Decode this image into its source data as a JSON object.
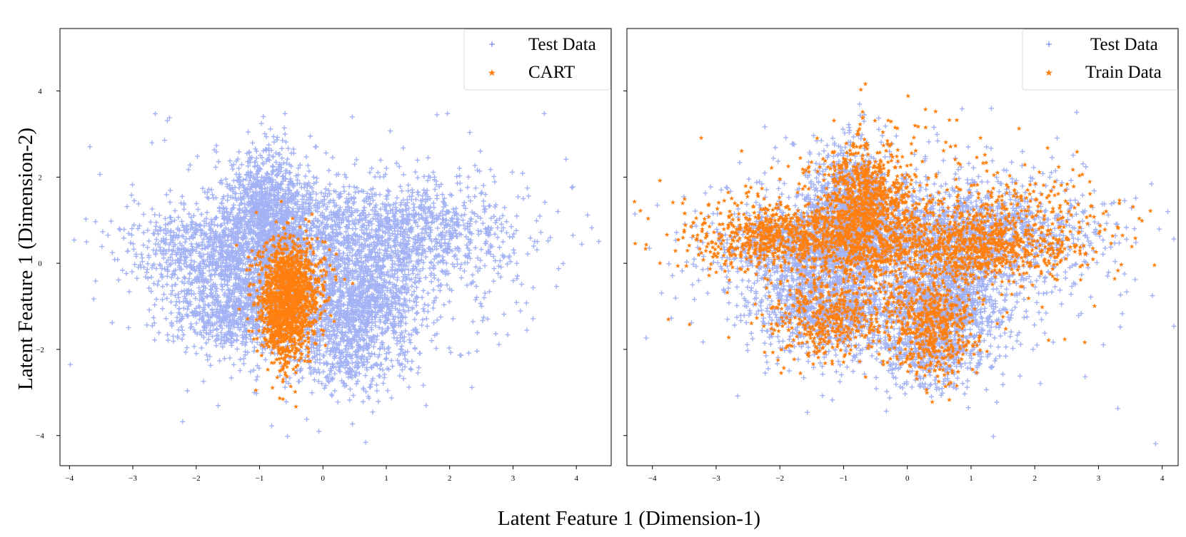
{
  "figure": {
    "ylabel": "Latent Feature 1 (Dimension-2)",
    "xlabel": "Latent Feature 1 (Dimension-1)"
  },
  "colors": {
    "test": "#3355e6",
    "overlay": "#ff7f0e"
  },
  "chart_data": [
    {
      "type": "scatter",
      "xlim": [
        -4.15,
        4.55
      ],
      "ylim": [
        -4.7,
        5.45
      ],
      "xticks": [
        -4,
        -3,
        -2,
        -1,
        0,
        1,
        2,
        3,
        4
      ],
      "yticks": [
        -4,
        -2,
        0,
        2,
        4
      ],
      "xtick_labels": [
        "−4",
        "−3",
        "−2",
        "−1",
        "0",
        "1",
        "2",
        "3",
        "4"
      ],
      "ytick_labels": [
        "−4",
        "−2",
        "0",
        "2",
        "4"
      ],
      "legend_position": "top-right",
      "series": [
        {
          "name": "Test Data",
          "marker": "plus",
          "color": "#3355e6",
          "point_count": 6000,
          "clusters": [
            {
              "cx": -0.9,
              "cy": 1.2,
              "sx": 0.35,
              "sy": 0.75,
              "n": 1000
            },
            {
              "cx": -1.7,
              "cy": 0.4,
              "sx": 0.7,
              "sy": 0.45,
              "n": 700
            },
            {
              "cx": 1.0,
              "cy": 0.7,
              "sx": 1.0,
              "sy": 0.55,
              "n": 1200
            },
            {
              "cx": -1.3,
              "cy": -1.0,
              "sx": 0.55,
              "sy": 0.55,
              "n": 900
            },
            {
              "cx": 0.6,
              "cy": -0.8,
              "sx": 0.45,
              "sy": 0.5,
              "n": 800
            },
            {
              "cx": 0.4,
              "cy": -2.0,
              "sx": 0.5,
              "sy": 0.5,
              "n": 500
            },
            {
              "cx": 0.0,
              "cy": 0.0,
              "sx": 1.5,
              "sy": 1.3,
              "n": 900
            }
          ]
        },
        {
          "name": "CART",
          "marker": "star",
          "color": "#ff7f0e",
          "point_count": 1500,
          "clusters": [
            {
              "cx": -0.55,
              "cy": -0.9,
              "sx": 0.22,
              "sy": 0.7,
              "n": 1300
            },
            {
              "cx": -0.4,
              "cy": -0.3,
              "sx": 0.3,
              "sy": 0.4,
              "n": 200
            }
          ]
        }
      ]
    },
    {
      "type": "scatter",
      "xlim": [
        -4.4,
        4.25
      ],
      "ylim": [
        -4.7,
        5.45
      ],
      "xticks": [
        -4,
        -3,
        -2,
        -1,
        0,
        1,
        2,
        3,
        4
      ],
      "yticks": [
        -4,
        -2,
        0,
        2,
        4
      ],
      "xtick_labels": [
        "−4",
        "−3",
        "−2",
        "−1",
        "0",
        "1",
        "2",
        "3",
        "4"
      ],
      "ytick_labels": [
        "",
        "",
        "",
        "",
        ""
      ],
      "legend_position": "top-right",
      "series": [
        {
          "name": "Test Data",
          "marker": "plus",
          "color": "#3355e6",
          "point_count": 6000,
          "clusters": [
            {
              "cx": -0.9,
              "cy": 1.2,
              "sx": 0.35,
              "sy": 0.75,
              "n": 1000
            },
            {
              "cx": -1.7,
              "cy": 0.4,
              "sx": 0.7,
              "sy": 0.45,
              "n": 700
            },
            {
              "cx": 1.0,
              "cy": 0.7,
              "sx": 1.0,
              "sy": 0.55,
              "n": 1200
            },
            {
              "cx": -1.3,
              "cy": -1.0,
              "sx": 0.55,
              "sy": 0.55,
              "n": 900
            },
            {
              "cx": 0.6,
              "cy": -0.8,
              "sx": 0.45,
              "sy": 0.5,
              "n": 800
            },
            {
              "cx": 0.4,
              "cy": -2.0,
              "sx": 0.5,
              "sy": 0.5,
              "n": 500
            },
            {
              "cx": 0.0,
              "cy": 0.0,
              "sx": 1.5,
              "sy": 1.3,
              "n": 900
            }
          ]
        },
        {
          "name": "Train Data",
          "marker": "star",
          "color": "#ff7f0e",
          "point_count": 4000,
          "clusters": [
            {
              "cx": -0.7,
              "cy": 1.3,
              "sx": 0.35,
              "sy": 0.75,
              "n": 900
            },
            {
              "cx": -2.0,
              "cy": 0.6,
              "sx": 0.7,
              "sy": 0.4,
              "n": 700
            },
            {
              "cx": 0.8,
              "cy": 0.3,
              "sx": 0.9,
              "sy": 0.35,
              "n": 700
            },
            {
              "cx": 0.4,
              "cy": -1.5,
              "sx": 0.35,
              "sy": 0.55,
              "n": 500
            },
            {
              "cx": -1.2,
              "cy": -1.3,
              "sx": 0.5,
              "sy": 0.45,
              "n": 400
            },
            {
              "cx": 1.5,
              "cy": 0.9,
              "sx": 0.9,
              "sy": 0.5,
              "n": 300
            },
            {
              "cx": 0.0,
              "cy": 0.6,
              "sx": 1.5,
              "sy": 1.2,
              "n": 500
            }
          ]
        }
      ]
    }
  ]
}
